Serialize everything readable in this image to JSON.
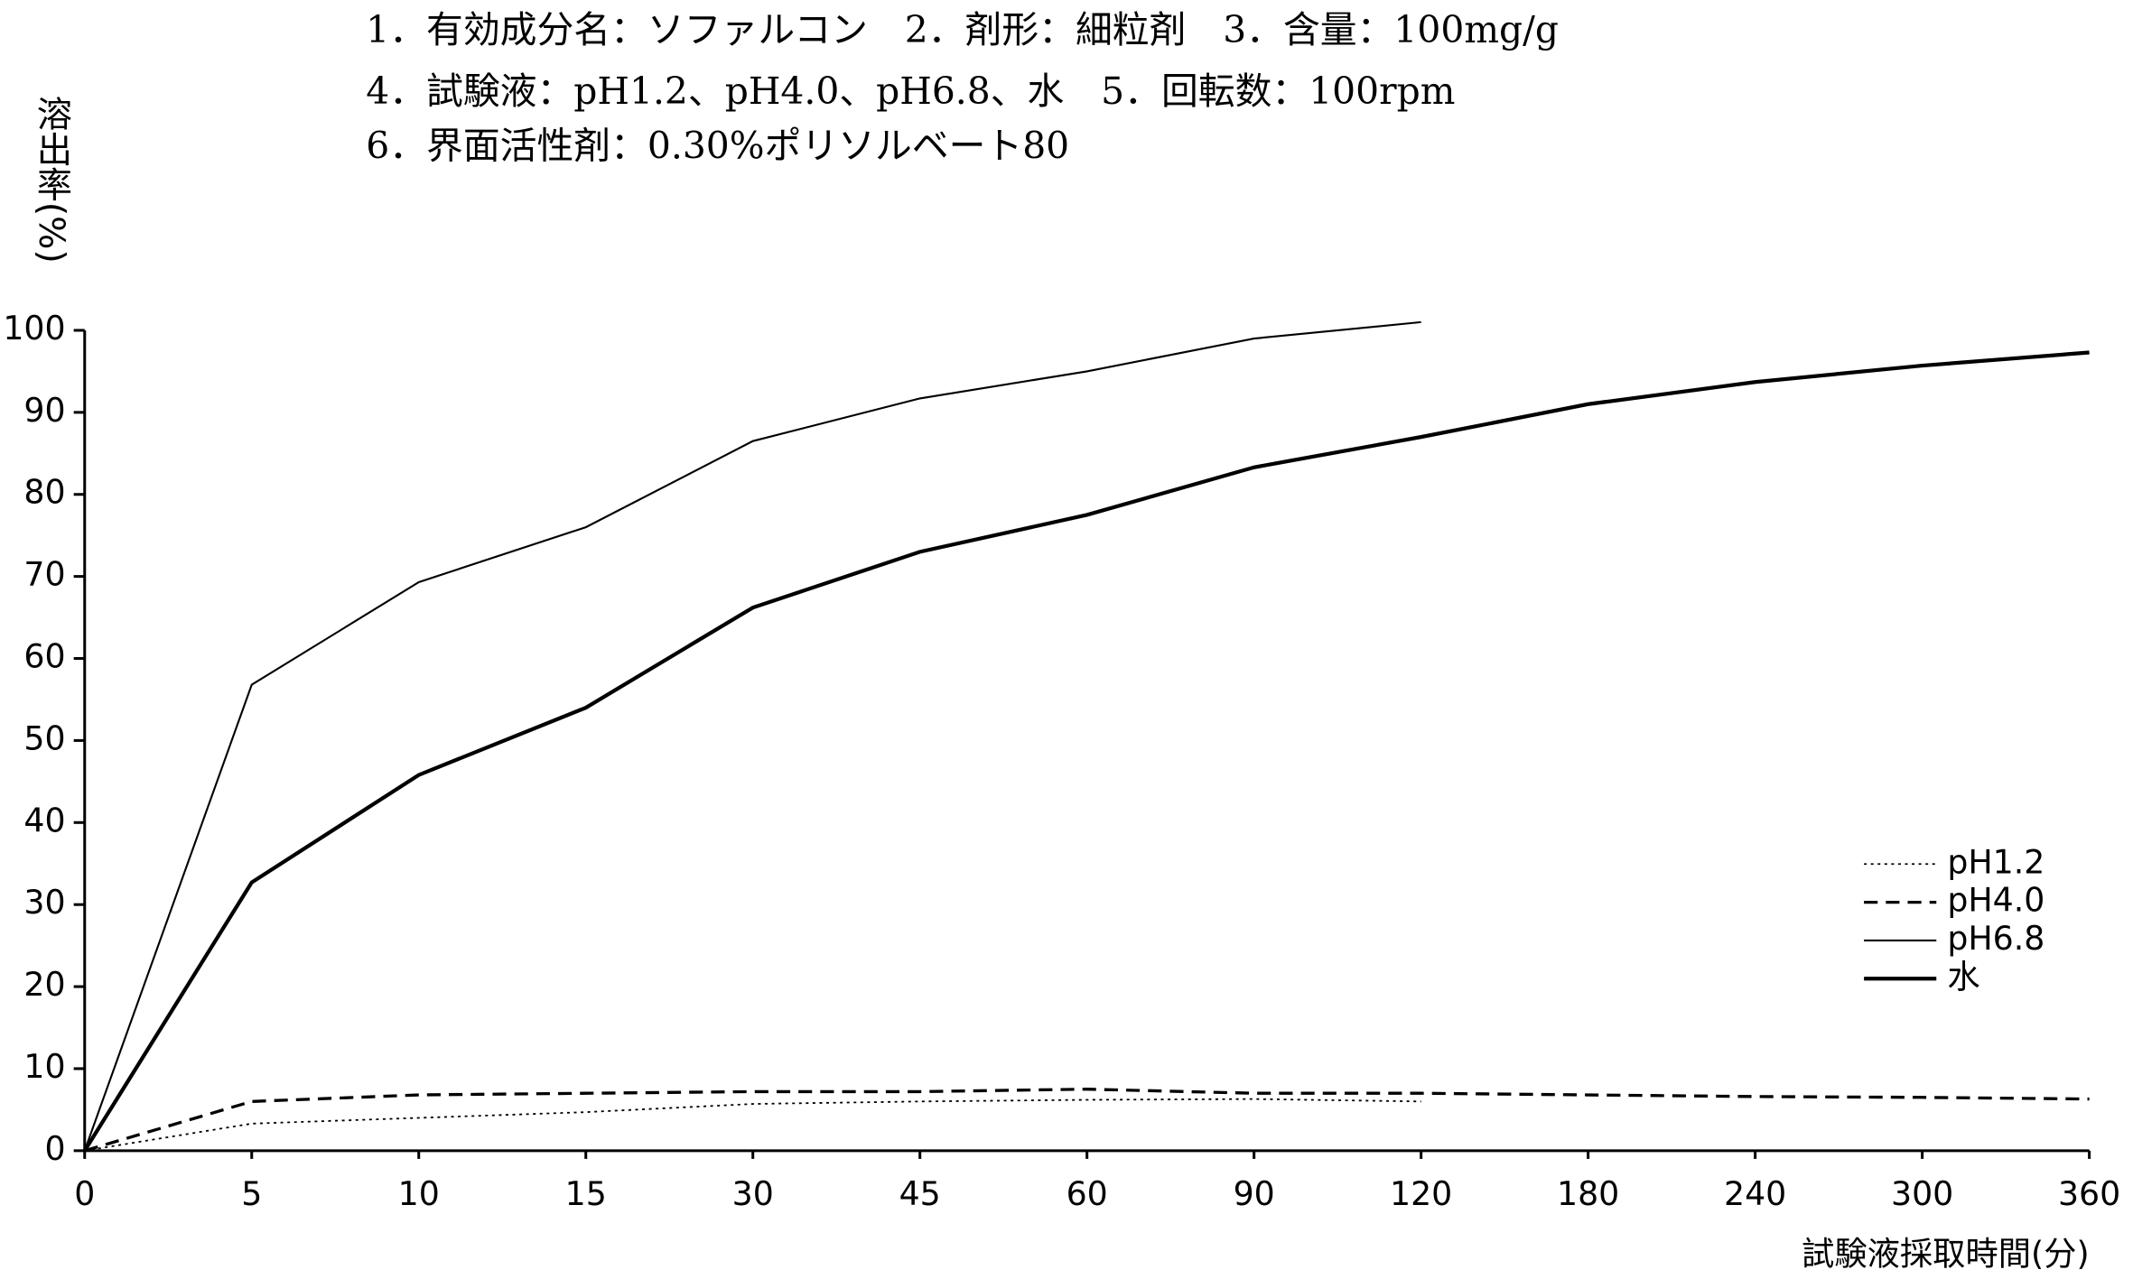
{
  "chart_data": {
    "type": "line",
    "header": [
      "1．有効成分名：ソファルコン　2．剤形：細粒剤　3．含量：100mg/g",
      "4．試験液：pH1.2、pH4.0、pH6.8、水　5．回転数：100rpm",
      "6．界面活性剤：0.30%ポリソルベート80"
    ],
    "y_label": "溶出率(%)",
    "x_label": "試験液採取時間(分)",
    "categories": [
      "0",
      "5",
      "10",
      "15",
      "30",
      "45",
      "60",
      "90",
      "120",
      "180",
      "240",
      "300",
      "360"
    ],
    "ylim": [
      0,
      100
    ],
    "yticks": [
      0,
      10,
      20,
      30,
      40,
      50,
      60,
      70,
      80,
      90,
      100
    ],
    "legend": "right",
    "series": [
      {
        "name": "pH1.2",
        "color": "#000",
        "style": "dotted",
        "values": [
          0,
          3.3,
          4,
          4.7,
          5.7,
          6,
          6.2,
          6.3,
          6,
          null,
          null,
          null,
          null
        ]
      },
      {
        "name": "pH4.0",
        "color": "#000",
        "style": "dashed",
        "values": [
          0,
          6,
          6.8,
          7,
          7.2,
          7.2,
          7.5,
          7,
          7,
          6.8,
          6.6,
          6.5,
          6.3
        ]
      },
      {
        "name": "pH6.8",
        "color": "#000",
        "style": "thin",
        "values": [
          0,
          56.8,
          69.3,
          76,
          86.5,
          91.7,
          95,
          99,
          101,
          null,
          null,
          null,
          null
        ]
      },
      {
        "name": "水",
        "color": "#000",
        "style": "thick",
        "values": [
          0,
          32.7,
          45.8,
          54,
          66.2,
          73,
          77.5,
          83.3,
          87,
          91,
          93.7,
          95.7,
          97.3
        ]
      }
    ]
  }
}
